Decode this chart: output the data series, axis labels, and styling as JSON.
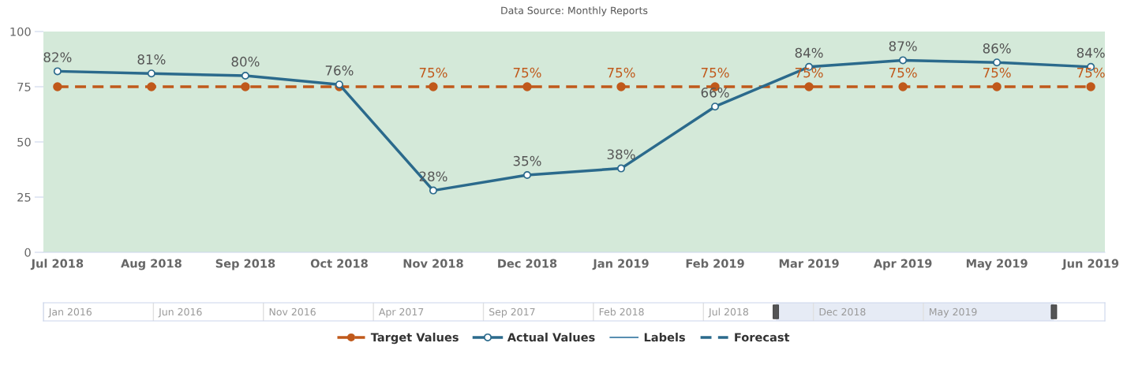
{
  "chart_data": [
    {
      "type": "line",
      "title": "Data Source: Monthly Reports",
      "categories": [
        "Jul 2018",
        "Aug 2018",
        "Sep 2018",
        "Oct 2018",
        "Nov 2018",
        "Dec 2018",
        "Jan 2019",
        "Feb 2019",
        "Mar 2019",
        "Apr 2019",
        "May 2019",
        "Jun 2019"
      ],
      "series": [
        {
          "name": "Target Values",
          "color": "#c0591b",
          "values": [
            75,
            75,
            75,
            75,
            75,
            75,
            75,
            75,
            75,
            75,
            75,
            75
          ],
          "marker": "circle",
          "line_style": "dashed",
          "value_labels": [
            null,
            null,
            null,
            null,
            "75%",
            "75%",
            "75%",
            "75%",
            "75%",
            "75%",
            "75%",
            "75%"
          ]
        },
        {
          "name": "Actual Values",
          "color": "#2b6a8c",
          "values": [
            82,
            81,
            80,
            76,
            28,
            35,
            38,
            66,
            84,
            87,
            86,
            84
          ],
          "marker": "circle",
          "line_style": "solid",
          "value_labels": [
            "82%",
            "81%",
            "80%",
            "76%",
            "28%",
            "35%",
            "38%",
            "66%",
            "84%",
            "87%",
            "86%",
            "84%"
          ]
        },
        {
          "name": "Labels",
          "color": "#3f7ea6",
          "values": [
            null,
            null,
            null,
            null,
            null,
            null,
            null,
            null,
            null,
            null,
            null,
            null
          ],
          "marker": "none",
          "line_style": "solid"
        },
        {
          "name": "Forecast",
          "color": "#2b6a8c",
          "values": [
            null,
            null,
            null,
            null,
            null,
            null,
            null,
            null,
            null,
            null,
            null,
            null
          ],
          "marker": "none",
          "line_style": "dashed"
        }
      ],
      "ylim": [
        0,
        100
      ],
      "yticks": [
        0,
        25,
        50,
        75,
        100
      ],
      "grid": false,
      "legend": "bottom",
      "bands": [
        {
          "axis": "y",
          "from": 0,
          "to": 100,
          "color": "#d4e9d9"
        }
      ]
    },
    {
      "type": "other",
      "annotations": [
        "Jan 2016",
        "Jun 2016",
        "Nov 2016",
        "Apr 2017",
        "Sep 2017",
        "Feb 2018",
        "Jul 2018",
        "Dec 2018",
        "May 2019"
      ]
    }
  ]
}
